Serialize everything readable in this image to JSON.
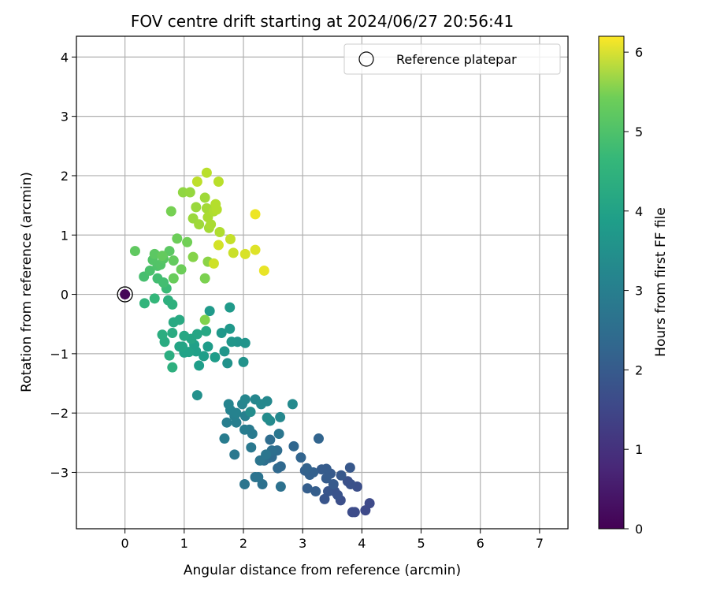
{
  "chart_data": {
    "type": "scatter",
    "title": "FOV centre drift starting at 2024/06/27 20:56:41",
    "xlabel": "Angular distance from reference (arcmin)",
    "ylabel": "Rotation from reference (arcmin)",
    "xlim": [
      -0.82,
      7.48
    ],
    "ylim": [
      -3.95,
      4.35
    ],
    "xticks": [
      0,
      1,
      2,
      3,
      4,
      5,
      6,
      7
    ],
    "yticks": [
      -3,
      -2,
      -1,
      0,
      1,
      2,
      3,
      4
    ],
    "grid": true,
    "legend": {
      "position": "top-right",
      "entries": [
        "Reference platepar"
      ]
    },
    "colorbar": {
      "label": "Hours from first FF file",
      "min": 0,
      "max": 6.2,
      "ticks": [
        0,
        1,
        2,
        3,
        4,
        5,
        6
      ],
      "colormap": "viridis"
    },
    "reference_point": {
      "x": 0,
      "y": 0
    },
    "points": [
      [
        0.0,
        0.0,
        0.1
      ],
      [
        4.13,
        -3.52,
        1.4
      ],
      [
        4.06,
        -3.64,
        1.4
      ],
      [
        3.84,
        -3.67,
        1.45
      ],
      [
        3.88,
        -3.67,
        1.45
      ],
      [
        3.92,
        -3.24,
        1.5
      ],
      [
        3.81,
        -3.2,
        1.55
      ],
      [
        3.76,
        -3.15,
        1.55
      ],
      [
        3.64,
        -3.47,
        1.5
      ],
      [
        3.59,
        -3.38,
        1.6
      ],
      [
        3.54,
        -3.32,
        1.6
      ],
      [
        3.43,
        -3.32,
        1.65
      ],
      [
        3.37,
        -3.45,
        1.65
      ],
      [
        3.8,
        -2.92,
        1.7
      ],
      [
        3.65,
        -3.05,
        1.7
      ],
      [
        3.52,
        -3.2,
        1.75
      ],
      [
        3.47,
        -3.02,
        1.75
      ],
      [
        3.4,
        -2.94,
        1.8
      ],
      [
        3.32,
        -2.95,
        1.8
      ],
      [
        3.4,
        -3.1,
        1.8
      ],
      [
        3.22,
        -3.32,
        1.85
      ],
      [
        3.08,
        -3.27,
        1.85
      ],
      [
        3.18,
        -3.0,
        1.9
      ],
      [
        3.12,
        -3.04,
        1.9
      ],
      [
        3.04,
        -2.97,
        1.9
      ],
      [
        3.07,
        -2.93,
        1.95
      ],
      [
        3.27,
        -2.43,
        2.0
      ],
      [
        2.97,
        -2.75,
        2.0
      ],
      [
        2.85,
        -2.56,
        2.05
      ],
      [
        2.63,
        -2.9,
        2.1
      ],
      [
        2.58,
        -2.93,
        2.1
      ],
      [
        2.48,
        -2.74,
        2.15
      ],
      [
        2.42,
        -2.76,
        2.15
      ],
      [
        2.45,
        -2.45,
        2.2
      ],
      [
        2.57,
        -2.63,
        2.2
      ],
      [
        2.48,
        -2.63,
        2.25
      ],
      [
        2.35,
        -2.8,
        2.25
      ],
      [
        2.63,
        -3.24,
        2.3
      ],
      [
        2.32,
        -3.2,
        2.3
      ],
      [
        2.2,
        -3.08,
        2.35
      ],
      [
        2.25,
        -3.08,
        2.35
      ],
      [
        2.02,
        -3.2,
        2.4
      ],
      [
        2.28,
        -2.8,
        2.4
      ],
      [
        2.38,
        -2.7,
        2.45
      ],
      [
        2.6,
        -2.35,
        2.45
      ],
      [
        2.13,
        -2.58,
        2.5
      ],
      [
        1.85,
        -2.7,
        2.5
      ],
      [
        2.15,
        -2.35,
        2.55
      ],
      [
        2.1,
        -2.28,
        2.55
      ],
      [
        2.02,
        -2.28,
        2.6
      ],
      [
        1.68,
        -2.43,
        2.6
      ],
      [
        1.72,
        -2.16,
        2.65
      ],
      [
        1.88,
        -2.16,
        2.65
      ],
      [
        2.03,
        -2.05,
        2.7
      ],
      [
        1.85,
        -2.05,
        2.7
      ],
      [
        1.88,
        -2.0,
        2.75
      ],
      [
        1.78,
        -1.95,
        2.75
      ],
      [
        1.75,
        -1.85,
        2.8
      ],
      [
        1.98,
        -1.85,
        2.8
      ],
      [
        2.03,
        -1.77,
        2.85
      ],
      [
        2.2,
        -1.77,
        2.85
      ],
      [
        2.3,
        -1.85,
        2.9
      ],
      [
        2.4,
        -1.8,
        2.9
      ],
      [
        2.62,
        -2.07,
        2.9
      ],
      [
        2.83,
        -1.85,
        2.95
      ],
      [
        2.45,
        -2.13,
        2.95
      ],
      [
        2.4,
        -2.08,
        3.0
      ],
      [
        2.12,
        -1.98,
        3.0
      ],
      [
        1.22,
        -1.7,
        3.1
      ],
      [
        2.0,
        -1.14,
        3.15
      ],
      [
        1.73,
        -1.16,
        3.15
      ],
      [
        2.03,
        -0.82,
        3.2
      ],
      [
        1.9,
        -0.8,
        3.2
      ],
      [
        1.8,
        -0.8,
        3.25
      ],
      [
        1.68,
        -0.96,
        3.25
      ],
      [
        1.77,
        -0.58,
        3.3
      ],
      [
        1.63,
        -0.65,
        3.3
      ],
      [
        1.77,
        -0.22,
        3.35
      ],
      [
        1.43,
        -0.28,
        3.35
      ],
      [
        1.52,
        -1.06,
        3.4
      ],
      [
        1.4,
        -0.88,
        3.4
      ],
      [
        1.33,
        -1.04,
        3.45
      ],
      [
        1.25,
        -1.2,
        3.45
      ],
      [
        1.2,
        -0.96,
        3.5
      ],
      [
        1.17,
        -0.85,
        3.5
      ],
      [
        1.08,
        -0.97,
        3.55
      ],
      [
        1.0,
        -0.98,
        3.55
      ],
      [
        0.97,
        -0.88,
        3.6
      ],
      [
        0.92,
        -0.88,
        3.6
      ],
      [
        1.12,
        -0.75,
        3.65
      ],
      [
        1.22,
        -0.67,
        3.65
      ],
      [
        1.37,
        -0.62,
        3.7
      ],
      [
        1.0,
        -0.7,
        3.7
      ],
      [
        0.92,
        -0.43,
        3.75
      ],
      [
        0.82,
        -0.47,
        3.75
      ],
      [
        0.8,
        -0.65,
        3.8
      ],
      [
        0.67,
        -0.8,
        3.8
      ],
      [
        0.63,
        -0.68,
        3.85
      ],
      [
        0.75,
        -1.03,
        3.85
      ],
      [
        0.8,
        -1.23,
        3.9
      ],
      [
        0.73,
        -0.1,
        3.9
      ],
      [
        0.8,
        -0.17,
        3.95
      ],
      [
        0.33,
        -0.15,
        4.05
      ],
      [
        0.5,
        -0.07,
        4.1
      ],
      [
        0.7,
        0.1,
        4.2
      ],
      [
        0.65,
        0.2,
        4.3
      ],
      [
        0.55,
        0.27,
        4.3
      ],
      [
        0.32,
        0.3,
        4.35
      ],
      [
        0.42,
        0.4,
        4.4
      ],
      [
        0.55,
        0.48,
        4.45
      ],
      [
        0.47,
        0.58,
        4.5
      ],
      [
        0.6,
        0.5,
        4.5
      ],
      [
        0.65,
        0.6,
        4.55
      ],
      [
        0.75,
        0.73,
        4.6
      ],
      [
        0.5,
        0.68,
        4.6
      ],
      [
        0.17,
        0.73,
        4.65
      ],
      [
        0.63,
        0.65,
        4.7
      ],
      [
        0.82,
        0.57,
        4.7
      ],
      [
        0.82,
        0.27,
        4.75
      ],
      [
        0.95,
        0.42,
        4.8
      ],
      [
        0.88,
        0.94,
        4.8
      ],
      [
        1.05,
        0.88,
        4.85
      ],
      [
        0.78,
        1.4,
        4.9
      ],
      [
        1.35,
        0.27,
        4.95
      ],
      [
        1.35,
        -0.43,
        5.0
      ],
      [
        1.15,
        0.63,
        5.05
      ],
      [
        1.4,
        0.55,
        5.1
      ],
      [
        0.98,
        1.72,
        5.15
      ],
      [
        1.1,
        1.72,
        5.2
      ],
      [
        1.2,
        1.47,
        5.25
      ],
      [
        1.15,
        1.28,
        5.25
      ],
      [
        1.25,
        1.18,
        5.3
      ],
      [
        1.35,
        1.63,
        5.3
      ],
      [
        1.38,
        1.45,
        5.35
      ],
      [
        1.42,
        1.12,
        5.35
      ],
      [
        1.4,
        1.3,
        5.4
      ],
      [
        1.45,
        1.18,
        5.4
      ],
      [
        1.6,
        1.05,
        5.45
      ],
      [
        1.5,
        1.4,
        5.45
      ],
      [
        1.55,
        1.43,
        5.5
      ],
      [
        1.53,
        1.52,
        5.5
      ],
      [
        1.38,
        2.05,
        5.55
      ],
      [
        1.58,
        1.9,
        5.55
      ],
      [
        1.22,
        1.9,
        5.6
      ],
      [
        1.78,
        0.93,
        5.65
      ],
      [
        1.83,
        0.7,
        5.7
      ],
      [
        1.5,
        0.52,
        5.75
      ],
      [
        1.58,
        0.83,
        5.8
      ],
      [
        2.03,
        0.68,
        5.85
      ],
      [
        2.2,
        0.75,
        5.9
      ],
      [
        2.35,
        0.4,
        6.0
      ],
      [
        2.2,
        1.35,
        6.05
      ]
    ]
  }
}
